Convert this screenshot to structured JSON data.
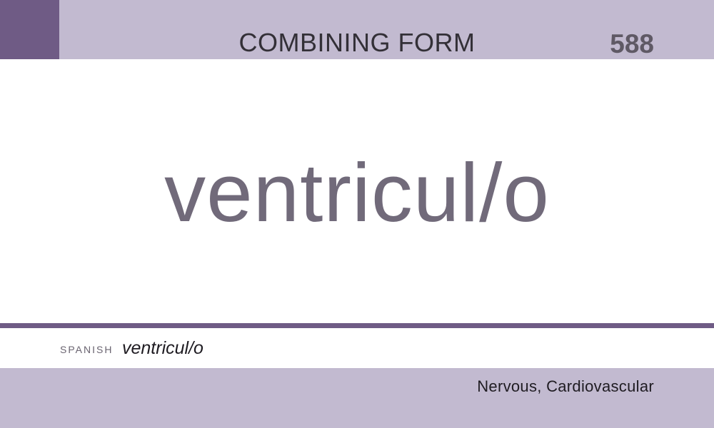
{
  "card": {
    "type": "COMBINING FORM",
    "number": "588",
    "term": "ventricul/o",
    "translation": {
      "language": "SPANISH",
      "text": "ventricul/o"
    },
    "categories": "Nervous, Cardiovascular"
  },
  "colors": {
    "band": "#c2bad0",
    "accent": "#6f5b85",
    "term_text": "#716a7a",
    "number_text": "#5f5965"
  }
}
